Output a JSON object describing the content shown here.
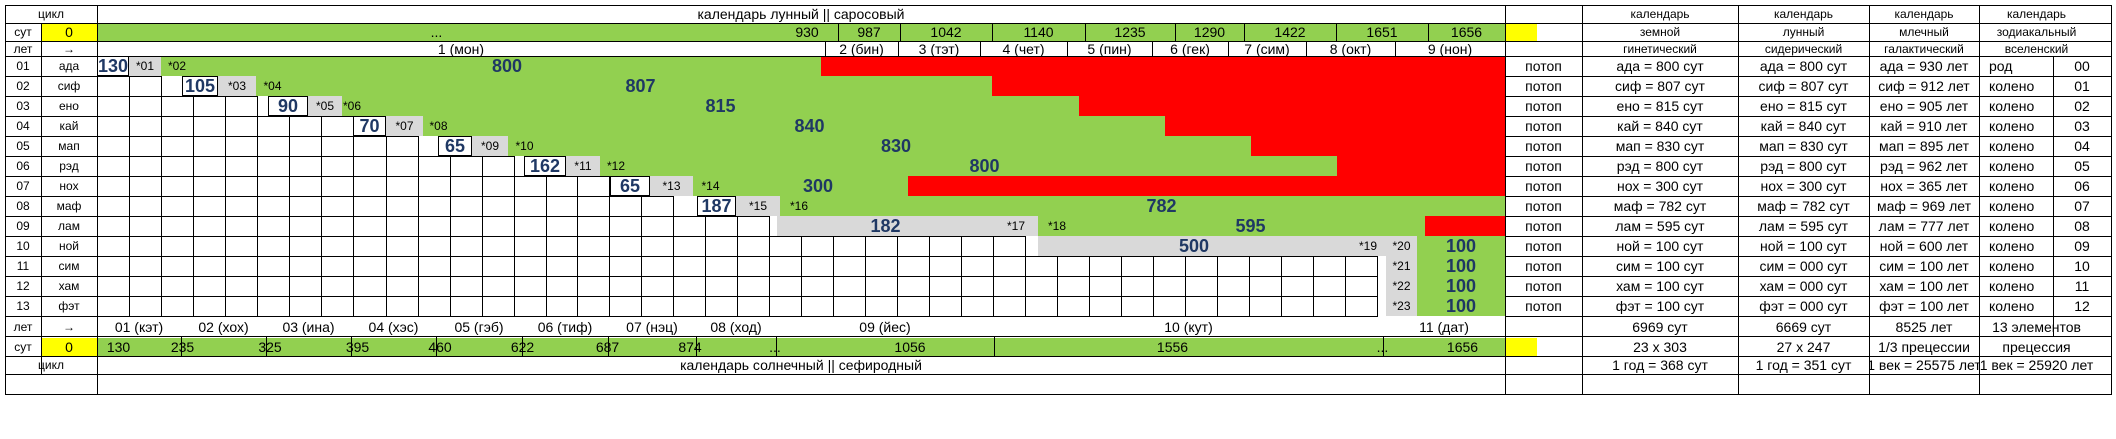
{
  "colors": {
    "green": "#92d050",
    "red": "#ff0000",
    "yellow": "#ffff00",
    "gray": "#d9d9d9",
    "num": "#1f3864",
    "white": "#ffffff"
  },
  "top": {
    "cycle_label": "цикл",
    "title": "календарь лунный || саросовый",
    "sut_label": "сут",
    "sut_start": "0",
    "ellipsis": "...",
    "sut_values": [
      "930",
      "987",
      "1042",
      "1140",
      "1235",
      "1290",
      "1422",
      "1651",
      "1656"
    ],
    "let_label": "лет",
    "arrow": "→",
    "months": [
      "1 (мон)",
      "2 (бин)",
      "3 (тэт)",
      "4 (чет)",
      "5 (пин)",
      "6 (гек)",
      "7 (сим)",
      "8 (окт)",
      "9 (нон)"
    ]
  },
  "right_headers": [
    {
      "l1": "календарь",
      "l2": "земной",
      "l3": "гинетический"
    },
    {
      "l1": "календарь",
      "l2": "лунный",
      "l3": "сидерический"
    },
    {
      "l1": "календарь",
      "l2": "млечный",
      "l3": "галактический"
    },
    {
      "l1": "календарь",
      "l2": "зодиакальный",
      "l3": "вселенский"
    }
  ],
  "rows": [
    {
      "num": "01",
      "name": "ада",
      "note": "потоп",
      "earth": "ада = 800 сут",
      "moon": "ада = 800 сут",
      "milky": "ада = 930 лет",
      "zod": "род",
      "idx": "00"
    },
    {
      "num": "02",
      "name": "сиф",
      "note": "потоп",
      "earth": "сиф = 807 сут",
      "moon": "сиф = 807 сут",
      "milky": "сиф = 912 лет",
      "zod": "колено",
      "idx": "01"
    },
    {
      "num": "03",
      "name": "ено",
      "note": "потоп",
      "earth": "ено = 815 сут",
      "moon": "ено = 815 сут",
      "milky": "ено = 905 лет",
      "zod": "колено",
      "idx": "02"
    },
    {
      "num": "04",
      "name": "кай",
      "note": "потоп",
      "earth": "кай = 840 сут",
      "moon": "кай = 840 сут",
      "milky": "кай = 910 лет",
      "zod": "колено",
      "idx": "03"
    },
    {
      "num": "05",
      "name": "мап",
      "note": "потоп",
      "earth": "мап = 830 сут",
      "moon": "мап = 830 сут",
      "milky": "мап = 895 лет",
      "zod": "колено",
      "idx": "04"
    },
    {
      "num": "06",
      "name": "рэд",
      "note": "потоп",
      "earth": "рэд = 800 сут",
      "moon": "рэд = 800 сут",
      "milky": "рэд = 962 лет",
      "zod": "колено",
      "idx": "05"
    },
    {
      "num": "07",
      "name": "нох",
      "note": "потоп",
      "earth": "нох = 300 сут",
      "moon": "нох = 300 сут",
      "milky": "нох = 365 лет",
      "zod": "колено",
      "idx": "06"
    },
    {
      "num": "08",
      "name": "маф",
      "note": "потоп",
      "earth": "маф = 782 сут",
      "moon": "маф = 782 сут",
      "milky": "маф = 969 лет",
      "zod": "колено",
      "idx": "07"
    },
    {
      "num": "09",
      "name": "лам",
      "note": "потоп",
      "earth": "лам = 595 сут",
      "moon": "лам = 595 сут",
      "milky": "лам = 777 лет",
      "zod": "колено",
      "idx": "08"
    },
    {
      "num": "10",
      "name": "ной",
      "note": "потоп",
      "earth": "ной = 100 сут",
      "moon": "ной = 100 сут",
      "milky": "ной = 600 лет",
      "zod": "колено",
      "idx": "09"
    },
    {
      "num": "11",
      "name": "сим",
      "note": "потоп",
      "earth": "сим = 100 сут",
      "moon": "сим = 000 сут",
      "milky": "сим = 100 лет",
      "zod": "колено",
      "idx": "10"
    },
    {
      "num": "12",
      "name": "хам",
      "note": "потоп",
      "earth": "хам = 100 сут",
      "moon": "хам = 000 сут",
      "milky": "хам = 100 лет",
      "zod": "колено",
      "idx": "11"
    },
    {
      "num": "13",
      "name": "фэт",
      "note": "потоп",
      "earth": "фэт = 100 сут",
      "moon": "фэт = 000 сут",
      "milky": "фэт = 100 лет",
      "zod": "колено",
      "idx": "12"
    }
  ],
  "bars": [
    {
      "row": 0,
      "first": "130",
      "s1": "*01",
      "s2": "*02",
      "val": "800"
    },
    {
      "row": 1,
      "first": "105",
      "s1": "*03",
      "s2": "*04",
      "val": "807"
    },
    {
      "row": 2,
      "first": "90",
      "s1": "*05",
      "s2": "*06",
      "val": "815"
    },
    {
      "row": 3,
      "first": "70",
      "s1": "*07",
      "s2": "*08",
      "val": "840"
    },
    {
      "row": 4,
      "first": "65",
      "s1": "*09",
      "s2": "*10",
      "val": "830"
    },
    {
      "row": 5,
      "first": "162",
      "s1": "*11",
      "s2": "*12",
      "val": "800"
    },
    {
      "row": 6,
      "first": "65",
      "s1": "*13",
      "s2": "*14",
      "val": "300"
    },
    {
      "row": 7,
      "first": "187",
      "s1": "*15",
      "s2": "*16",
      "val": "782"
    },
    {
      "row": 8,
      "first": "182",
      "s1": "*17",
      "s2": "*18",
      "val": "595"
    },
    {
      "row": 9,
      "first": "500",
      "s1": "*19",
      "s2": "*20",
      "val": "100"
    },
    {
      "row": 10,
      "s2": "*21",
      "val": "100"
    },
    {
      "row": 11,
      "s2": "*22",
      "val": "100"
    },
    {
      "row": 12,
      "s2": "*23",
      "val": "100"
    }
  ],
  "bottom": {
    "let_label": "лет",
    "arrow": "→",
    "months": [
      "01 (кэт)",
      "02 (хох)",
      "03 (ина)",
      "04 (хэс)",
      "05 (гэб)",
      "06 (тиф)",
      "07 (нэц)",
      "08 (ход)",
      "09 (йес)",
      "10 (кут)",
      "11 (дат)"
    ],
    "sut_label": "сут",
    "sut_start": "0",
    "sut_values": [
      "130",
      "235",
      "325",
      "395",
      "460",
      "622",
      "687",
      "874",
      "...",
      "1056",
      "1556",
      "...",
      "1656"
    ],
    "cycle_label": "цикл",
    "title": "календарь солнечный || сефиродный"
  },
  "summary": {
    "r1": [
      "6969 сут",
      "6669 сут",
      "8525 лет",
      "13 элементов"
    ],
    "r2": [
      "23 x 303",
      "27 x 247",
      "1/3 прецессии",
      "прецессия"
    ],
    "r3": [
      "1 год = 368 сут",
      "1 год = 351 сут",
      "1 век = 25575 лет",
      "1 век = 25920 лет"
    ]
  }
}
